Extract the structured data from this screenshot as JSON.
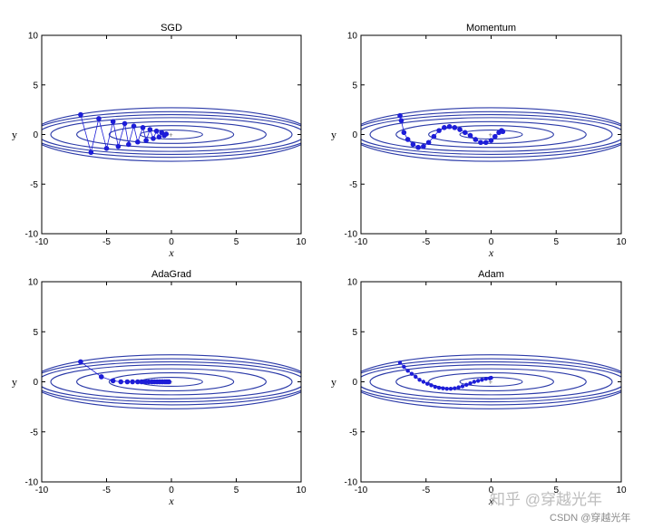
{
  "chart_data": [
    {
      "type": "line",
      "title": "SGD",
      "xlabel": "x",
      "ylabel": "y",
      "xlim": [
        -10,
        10
      ],
      "ylim": [
        -10,
        10
      ],
      "xticks": [
        "-10",
        "-5",
        "0",
        "5",
        "10"
      ],
      "yticks": [
        "10",
        "5",
        "0",
        "-5",
        "-10"
      ],
      "grid": false,
      "contour_semi_axes": [
        [
          10.8,
          2.7
        ],
        [
          10.8,
          2.3
        ],
        [
          10.3,
          2.0
        ],
        [
          9.3,
          1.7
        ],
        [
          7.3,
          1.3
        ],
        [
          4.8,
          0.9
        ],
        [
          2.4,
          0.45
        ]
      ],
      "series": [
        {
          "x": [
            -7.0,
            -6.2,
            -5.6,
            -5.0,
            -4.5,
            -4.1,
            -3.6,
            -3.3,
            -2.9,
            -2.6,
            -2.2,
            -1.95,
            -1.65,
            -1.4,
            -1.15,
            -0.95,
            -0.75,
            -0.55,
            -0.4
          ],
          "y": [
            2.0,
            -1.8,
            1.6,
            -1.4,
            1.3,
            -1.2,
            1.1,
            -1.0,
            0.85,
            -0.75,
            0.7,
            -0.6,
            0.5,
            -0.4,
            0.35,
            -0.25,
            0.2,
            -0.1,
            0.05
          ]
        }
      ]
    },
    {
      "type": "line",
      "title": "Momentum",
      "xlabel": "x",
      "ylabel": "y",
      "xlim": [
        -10,
        10
      ],
      "ylim": [
        -10,
        10
      ],
      "xticks": [
        "-10",
        "-5",
        "0",
        "5",
        "10"
      ],
      "yticks": [
        "10",
        "5",
        "0",
        "-5",
        "-10"
      ],
      "grid": false,
      "contour_semi_axes": [
        [
          10.8,
          2.7
        ],
        [
          10.8,
          2.3
        ],
        [
          10.3,
          2.0
        ],
        [
          9.3,
          1.7
        ],
        [
          7.3,
          1.3
        ],
        [
          4.8,
          0.9
        ],
        [
          2.4,
          0.45
        ]
      ],
      "series": [
        {
          "x": [
            -7.0,
            -6.9,
            -6.7,
            -6.4,
            -6.0,
            -5.6,
            -5.2,
            -4.8,
            -4.4,
            -4.0,
            -3.6,
            -3.2,
            -2.8,
            -2.4,
            -2.0,
            -1.6,
            -1.2,
            -0.8,
            -0.4,
            0.0,
            0.3,
            0.6,
            0.8,
            0.9
          ],
          "y": [
            1.9,
            1.4,
            0.2,
            -0.5,
            -1.0,
            -1.3,
            -1.2,
            -0.8,
            -0.2,
            0.4,
            0.7,
            0.8,
            0.7,
            0.5,
            0.2,
            -0.1,
            -0.5,
            -0.8,
            -0.8,
            -0.6,
            -0.2,
            0.2,
            0.4,
            0.3
          ]
        }
      ]
    },
    {
      "type": "line",
      "title": "AdaGrad",
      "xlabel": "x",
      "ylabel": "y",
      "xlim": [
        -10,
        10
      ],
      "ylim": [
        -10,
        10
      ],
      "xticks": [
        "-10",
        "-5",
        "0",
        "5",
        "10"
      ],
      "yticks": [
        "10",
        "5",
        "0",
        "-5",
        "-10"
      ],
      "grid": false,
      "contour_semi_axes": [
        [
          10.8,
          2.7
        ],
        [
          10.8,
          2.3
        ],
        [
          10.3,
          2.0
        ],
        [
          9.3,
          1.7
        ],
        [
          7.3,
          1.3
        ],
        [
          4.8,
          0.9
        ],
        [
          2.4,
          0.45
        ]
      ],
      "series": [
        {
          "x": [
            -7.0,
            -5.4,
            -4.5,
            -3.9,
            -3.4,
            -3.0,
            -2.6,
            -2.3,
            -2.0,
            -1.75,
            -1.5,
            -1.3,
            -1.1,
            -0.9,
            -0.7,
            -0.5,
            -0.35,
            -0.2
          ],
          "y": [
            2.0,
            0.5,
            0.1,
            0.0,
            0.0,
            0.0,
            0.0,
            0.0,
            0.0,
            0.0,
            0.0,
            0.0,
            0.0,
            0.0,
            0.0,
            0.0,
            0.0,
            0.0
          ]
        }
      ]
    },
    {
      "type": "line",
      "title": "Adam",
      "xlabel": "x",
      "ylabel": "y",
      "xlim": [
        -10,
        10
      ],
      "ylim": [
        -10,
        10
      ],
      "xticks": [
        "-10",
        "-5",
        "0",
        "5",
        "10"
      ],
      "yticks": [
        "10",
        "5",
        "0",
        "-5",
        "-10"
      ],
      "grid": false,
      "contour_semi_axes": [
        [
          10.8,
          2.7
        ],
        [
          10.8,
          2.3
        ],
        [
          10.3,
          2.0
        ],
        [
          9.3,
          1.7
        ],
        [
          7.3,
          1.3
        ],
        [
          4.8,
          0.9
        ],
        [
          2.4,
          0.45
        ]
      ],
      "series": [
        {
          "x": [
            -7.0,
            -6.7,
            -6.4,
            -6.1,
            -5.8,
            -5.5,
            -5.2,
            -4.9,
            -4.6,
            -4.3,
            -4.0,
            -3.7,
            -3.4,
            -3.1,
            -2.8,
            -2.5,
            -2.2,
            -1.9,
            -1.6,
            -1.3,
            -1.0,
            -0.7,
            -0.4,
            -0.1,
            0.0
          ],
          "y": [
            1.9,
            1.5,
            1.1,
            0.8,
            0.5,
            0.2,
            0.0,
            -0.2,
            -0.35,
            -0.5,
            -0.6,
            -0.65,
            -0.7,
            -0.7,
            -0.65,
            -0.55,
            -0.45,
            -0.3,
            -0.15,
            0.0,
            0.1,
            0.2,
            0.3,
            0.35,
            0.4
          ]
        }
      ]
    }
  ],
  "watermark": {
    "zhihu": "知乎 @穿越光年",
    "csdn": "CSDN @穿越光年"
  },
  "colors": {
    "series": "#1d1dd8",
    "contour": "#2b3aa8",
    "axis": "#000000"
  }
}
